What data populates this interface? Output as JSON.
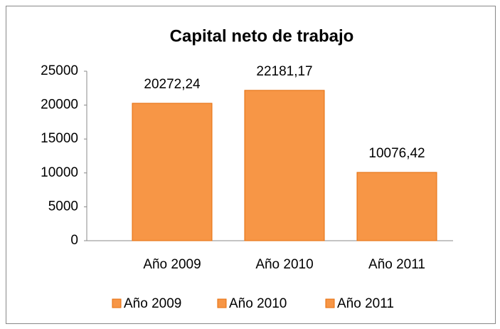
{
  "chart_data": {
    "type": "bar",
    "title": "Capital neto de trabajo",
    "categories": [
      "Año 2009",
      "Año 2010",
      "Año 2011"
    ],
    "values": [
      20272.24,
      22181.17,
      10076.42
    ],
    "value_labels": [
      "20272,24",
      "22181,17",
      "10076,42"
    ],
    "color": "#f79646",
    "ylim": [
      0,
      25000
    ],
    "yticks": [
      0,
      5000,
      10000,
      15000,
      20000,
      25000
    ],
    "grid": false,
    "legend": "bottom"
  }
}
